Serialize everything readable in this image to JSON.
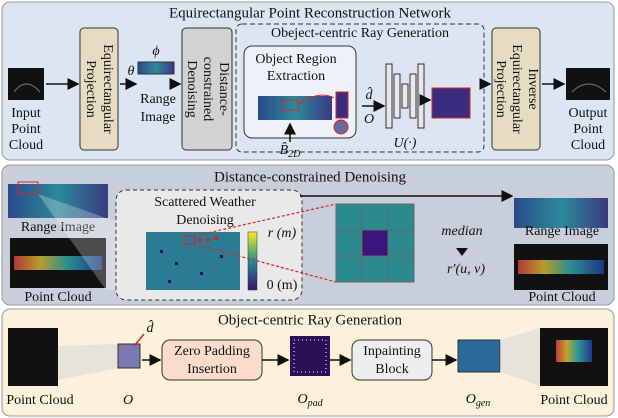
{
  "top": {
    "title": "Equirectangular Point Reconstruction Network",
    "input_label": [
      "Input",
      "Point",
      "Cloud"
    ],
    "projection": [
      "Equirectangular",
      "Projection"
    ],
    "phi": "ϕ",
    "theta": "θ",
    "range_image": [
      "Range",
      "Image"
    ],
    "denoising": [
      "Distance-",
      "constrained",
      "Denoising"
    ],
    "ray_title": "Obeject-centric Ray Generation",
    "extraction": [
      "Object Region",
      "Extraction"
    ],
    "d_hat": "d̂",
    "o": "O",
    "unet": "U(·)",
    "b2d": {
      "base": "B̂",
      "sub": "2D"
    },
    "inverse": [
      "Inverse",
      "Equirectangular",
      "Projection"
    ],
    "output_label": [
      "Output",
      "Point",
      "Cloud"
    ]
  },
  "middle": {
    "title": "Distance-constrained Denoising",
    "range_image_left": "Range Image",
    "point_cloud_left": "Point Cloud",
    "scatter": [
      "Scattered Weather",
      "Denoising"
    ],
    "r_max": "r (m)",
    "r_min": "0 (m)",
    "median": "median",
    "r_prime": "r′(u, v)",
    "range_image_right": "Range Image",
    "point_cloud_right": "Point Cloud"
  },
  "bottom": {
    "title": "Object-centric Ray Generation",
    "point_cloud_left": "Point Cloud",
    "o": "O",
    "d_hat": "d̂",
    "zero_padding": [
      "Zero Padding",
      "Insertion"
    ],
    "o_pad": {
      "base": "O",
      "sub": "pad"
    },
    "inpainting": [
      "Inpainting",
      "Block"
    ],
    "o_gen": {
      "base": "O",
      "sub": "gen"
    },
    "point_cloud_right": "Point Cloud"
  }
}
